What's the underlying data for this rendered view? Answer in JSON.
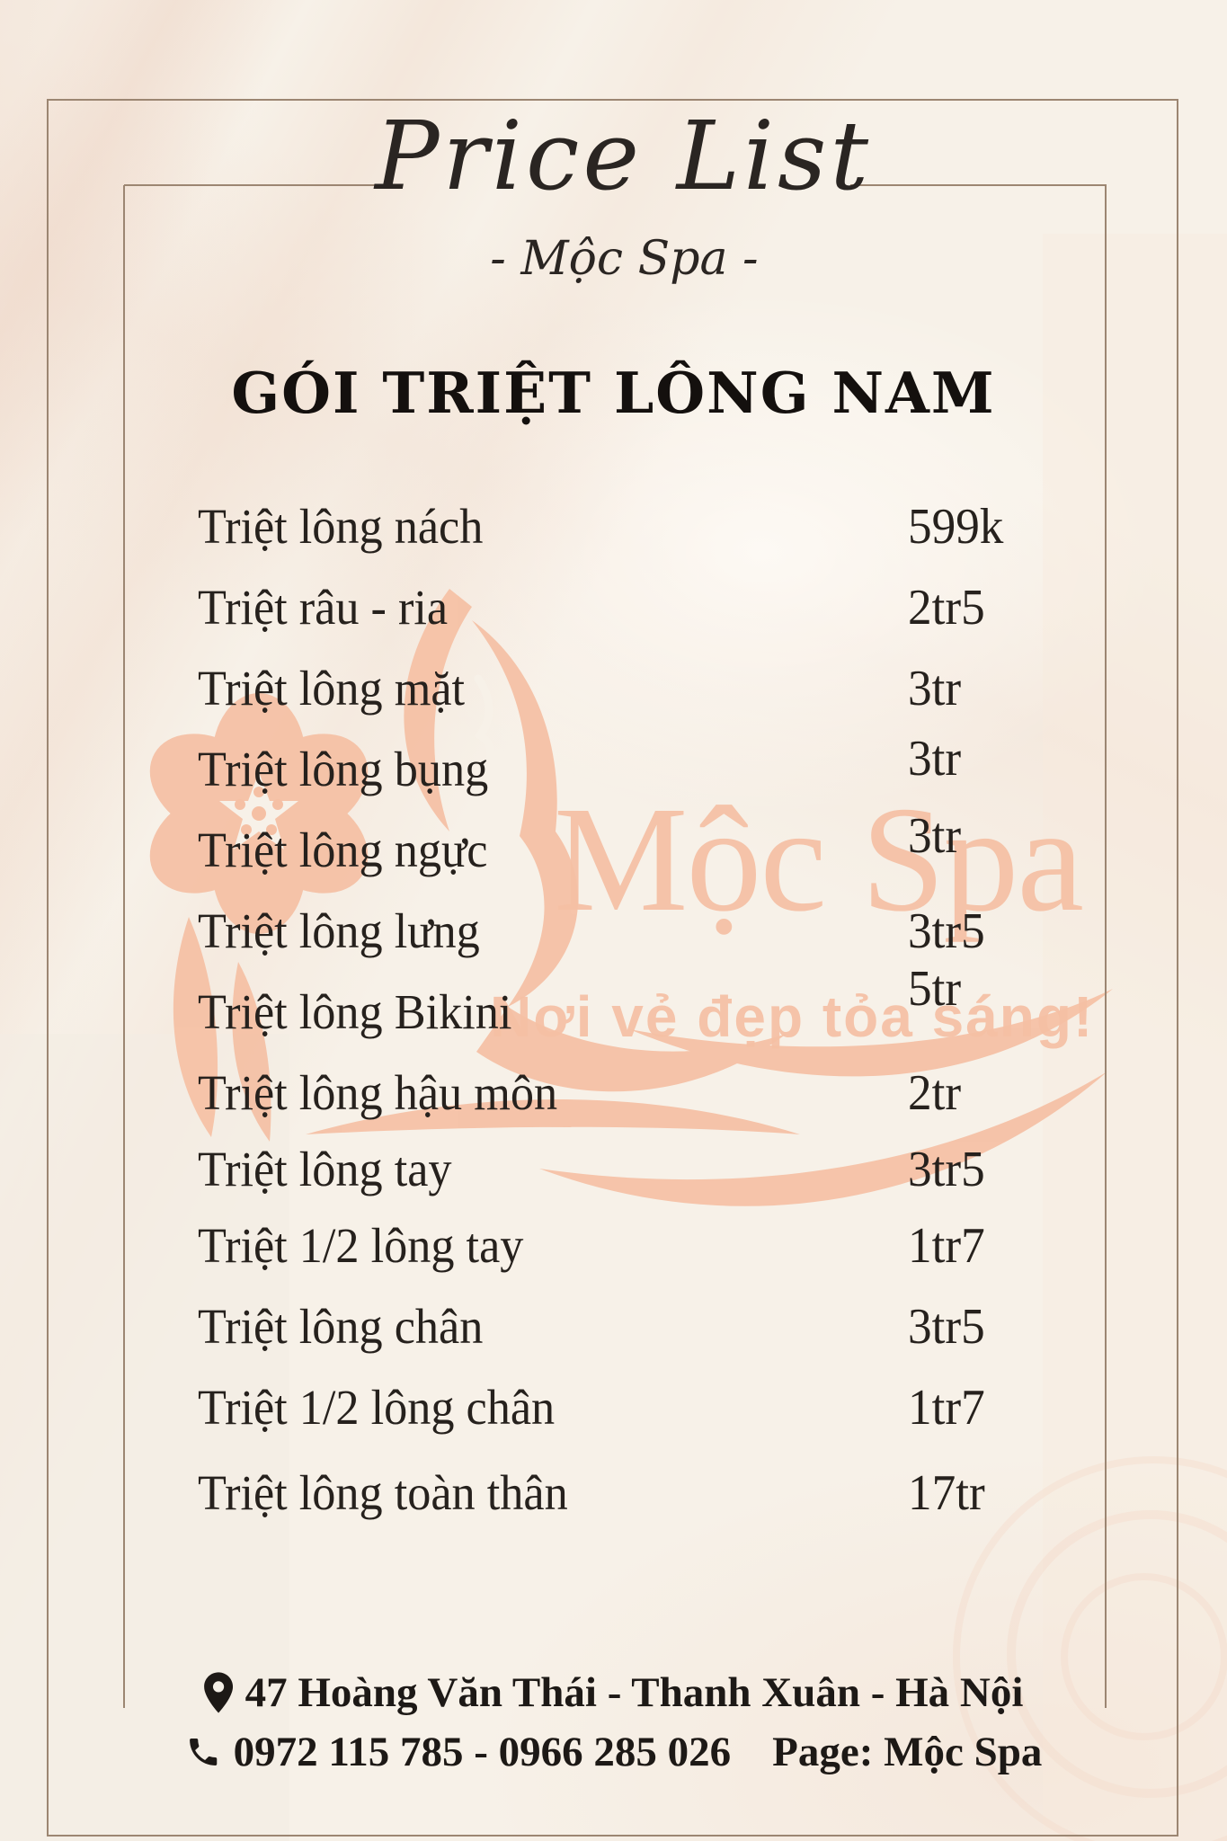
{
  "page": {
    "title": "Price List",
    "subtitle": "- Mộc Spa -",
    "section_heading": "GÓI TRIỆT LÔNG NAM"
  },
  "price_list": {
    "items": [
      {
        "label": "Triệt lông nách",
        "price": "599k"
      },
      {
        "label": "Triệt râu - ria",
        "price": "2tr5"
      },
      {
        "label": "Triệt lông mặt",
        "price": "3tr"
      },
      {
        "label": "Triệt lông bụng",
        "price": "3tr"
      },
      {
        "label": "Triệt lông ngực",
        "price": "3tr"
      },
      {
        "label": "Triệt lông lưng",
        "price": "3tr5"
      },
      {
        "label": "Triệt lông Bikini",
        "price": "5tr"
      },
      {
        "label": "Triệt lông hậu môn",
        "price": "2tr"
      },
      {
        "label": "Triệt lông tay",
        "price": "3tr5"
      },
      {
        "label": "Triệt 1/2 lông tay",
        "price": "1tr7"
      },
      {
        "label": "Triệt lông chân",
        "price": "3tr5"
      },
      {
        "label": "Triệt 1/2 lông chân",
        "price": "1tr7"
      },
      {
        "label": "Triệt lông toàn thân",
        "price": "17tr"
      }
    ]
  },
  "watermark": {
    "brand": "Mộc Spa",
    "slogan": "Nơi vẻ đẹp tỏa sáng!"
  },
  "footer": {
    "address": "47 Hoàng Văn Thái - Thanh Xuân - Hà Nội",
    "phones": "0972 115 785 - 0966 285 026",
    "page_label": "Page: Mộc Spa"
  },
  "colors": {
    "accent_peach": "#f5c0a4",
    "frame_line": "#9c8672",
    "text": "#231f1c",
    "background": "#f7f1e8"
  }
}
